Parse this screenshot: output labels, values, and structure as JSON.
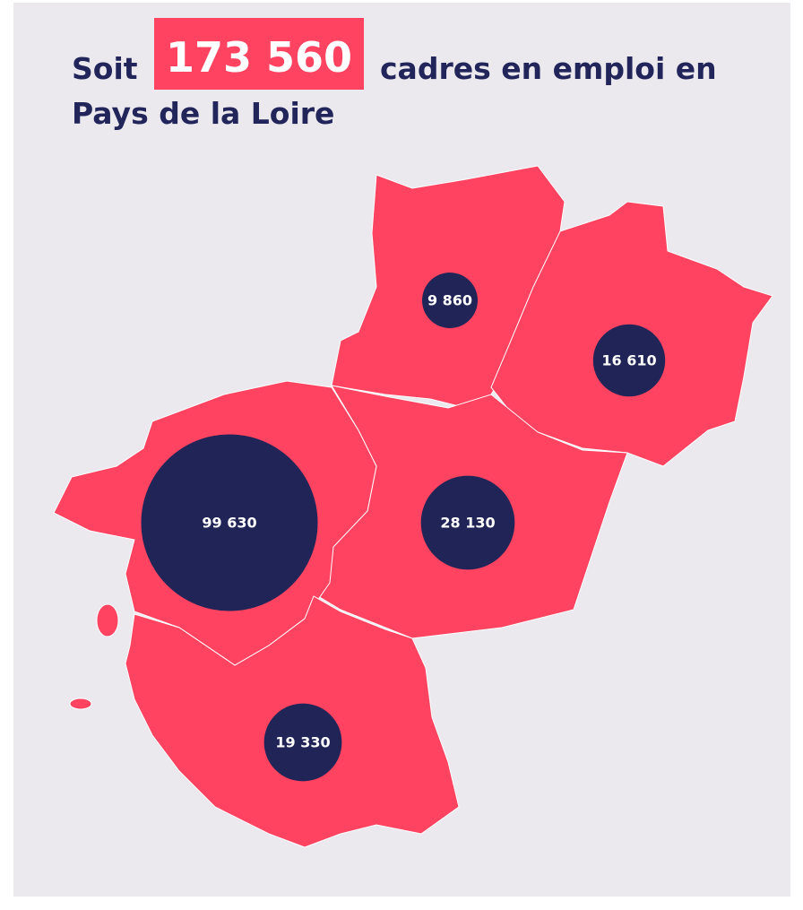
{
  "header": {
    "prefix": "Soit",
    "highlight": "173 560",
    "suffix": "cadres en emploi en",
    "line2": "Pays de la Loire"
  },
  "map": {
    "regions": [
      {
        "value": 9860,
        "value_label": "9 860"
      },
      {
        "value": 16610,
        "value_label": "16 610"
      },
      {
        "value": 99630,
        "value_label": "99 630"
      },
      {
        "value": 28130,
        "value_label": "28 130"
      },
      {
        "value": 19330,
        "value_label": "19 330"
      }
    ],
    "color": "#ff4361",
    "bubble_color": "#212456"
  }
}
